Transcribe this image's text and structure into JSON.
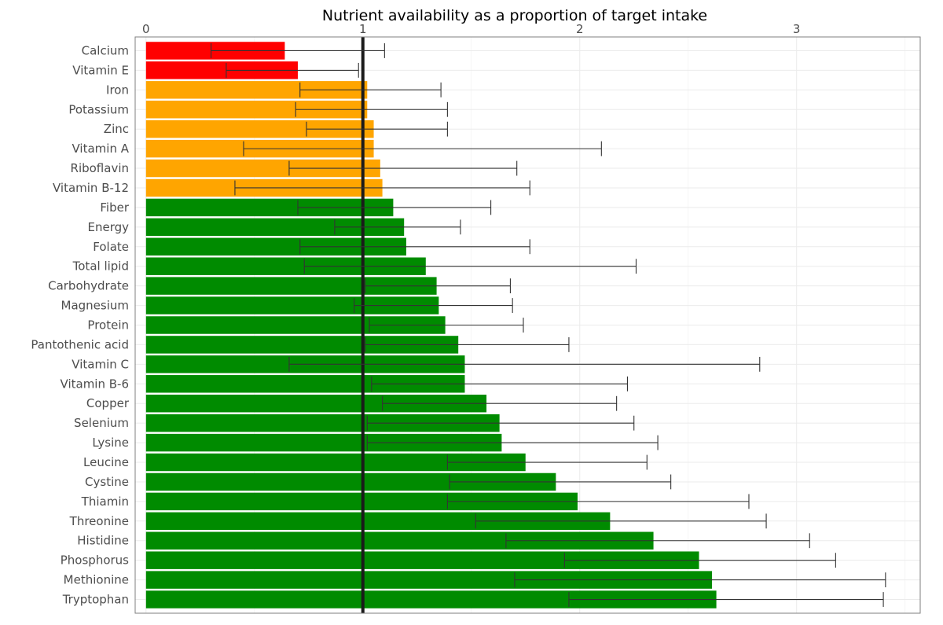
{
  "chart_data": {
    "type": "bar",
    "orientation": "horizontal",
    "title": "Nutrient availability as a proportion of target intake",
    "xlabel": "",
    "ylabel": "",
    "x_axis_position": "top",
    "xlim": [
      -0.05,
      3.57
    ],
    "x_ticks": [
      0,
      1,
      2,
      3
    ],
    "reference_line": 1,
    "grid": true,
    "legend": "none",
    "colors": {
      "low": "#ff0000",
      "marginal": "#ffa500",
      "adequate": "#008b00",
      "reference": "#1a1a1a",
      "errorbar": "#333333"
    },
    "categories": [
      "Calcium",
      "Vitamin E",
      "Iron",
      "Potassium",
      "Zinc",
      "Vitamin A",
      "Riboflavin",
      "Vitamin B-12",
      "Fiber",
      "Energy",
      "Folate",
      "Total lipid",
      "Carbohydrate",
      "Magnesium",
      "Protein",
      "Pantothenic acid",
      "Vitamin C",
      "Vitamin B-6",
      "Copper",
      "Selenium",
      "Lysine",
      "Leucine",
      "Cystine",
      "Thiamin",
      "Threonine",
      "Histidine",
      "Phosphorus",
      "Methionine",
      "Tryptophan"
    ],
    "values": [
      0.64,
      0.7,
      1.02,
      1.02,
      1.05,
      1.05,
      1.08,
      1.09,
      1.14,
      1.19,
      1.2,
      1.29,
      1.34,
      1.35,
      1.38,
      1.44,
      1.47,
      1.47,
      1.57,
      1.63,
      1.64,
      1.75,
      1.89,
      1.99,
      2.14,
      2.34,
      2.55,
      2.61,
      2.63
    ],
    "error_low": [
      0.3,
      0.37,
      0.71,
      0.69,
      0.74,
      0.45,
      0.66,
      0.41,
      0.7,
      0.87,
      0.71,
      0.73,
      1.01,
      0.96,
      1.03,
      1.01,
      0.66,
      1.04,
      1.09,
      1.02,
      1.02,
      1.39,
      1.4,
      1.39,
      1.52,
      1.66,
      1.93,
      1.7,
      1.95
    ],
    "error_high": [
      1.1,
      0.98,
      1.36,
      1.39,
      1.39,
      2.1,
      1.71,
      1.77,
      1.59,
      1.45,
      1.77,
      2.26,
      1.68,
      1.69,
      1.74,
      1.95,
      2.83,
      2.22,
      2.17,
      2.25,
      2.36,
      2.31,
      2.42,
      2.78,
      2.86,
      3.06,
      3.18,
      3.41,
      3.4
    ],
    "status": [
      "low",
      "low",
      "marginal",
      "marginal",
      "marginal",
      "marginal",
      "marginal",
      "marginal",
      "adequate",
      "adequate",
      "adequate",
      "adequate",
      "adequate",
      "adequate",
      "adequate",
      "adequate",
      "adequate",
      "adequate",
      "adequate",
      "adequate",
      "adequate",
      "adequate",
      "adequate",
      "adequate",
      "adequate",
      "adequate",
      "adequate",
      "adequate",
      "adequate"
    ]
  }
}
